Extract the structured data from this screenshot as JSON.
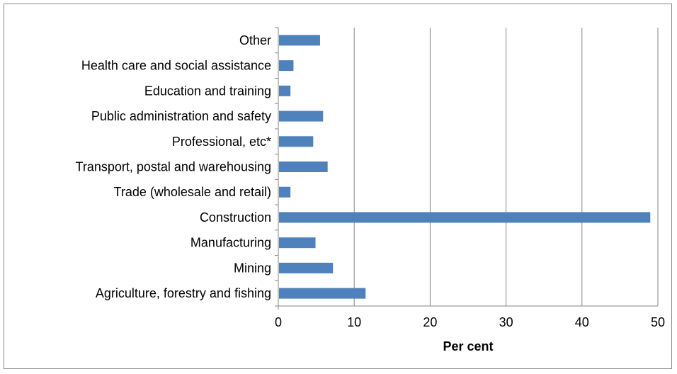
{
  "chart_data": {
    "type": "bar",
    "orientation": "horizontal",
    "categories": [
      "Agriculture, forestry and fishing",
      "Mining",
      "Manufacturing",
      "Construction",
      "Trade (wholesale and retail)",
      "Transport, postal and warehousing",
      "Professional, etc*",
      "Public administration and safety",
      "Education and training",
      "Health care and social assistance",
      "Other"
    ],
    "values": [
      11.5,
      7.2,
      4.9,
      49.0,
      1.6,
      6.5,
      4.6,
      5.9,
      1.6,
      2.0,
      5.5
    ],
    "title": "",
    "xlabel": "Per cent",
    "ylabel": "",
    "xlim": [
      0,
      50
    ],
    "xticks": [
      "0",
      "10",
      "20",
      "30",
      "40",
      "50"
    ],
    "grid": "vertical",
    "legend": "none",
    "bar_color": "#4f81bd",
    "gridline_color": "#868686"
  }
}
